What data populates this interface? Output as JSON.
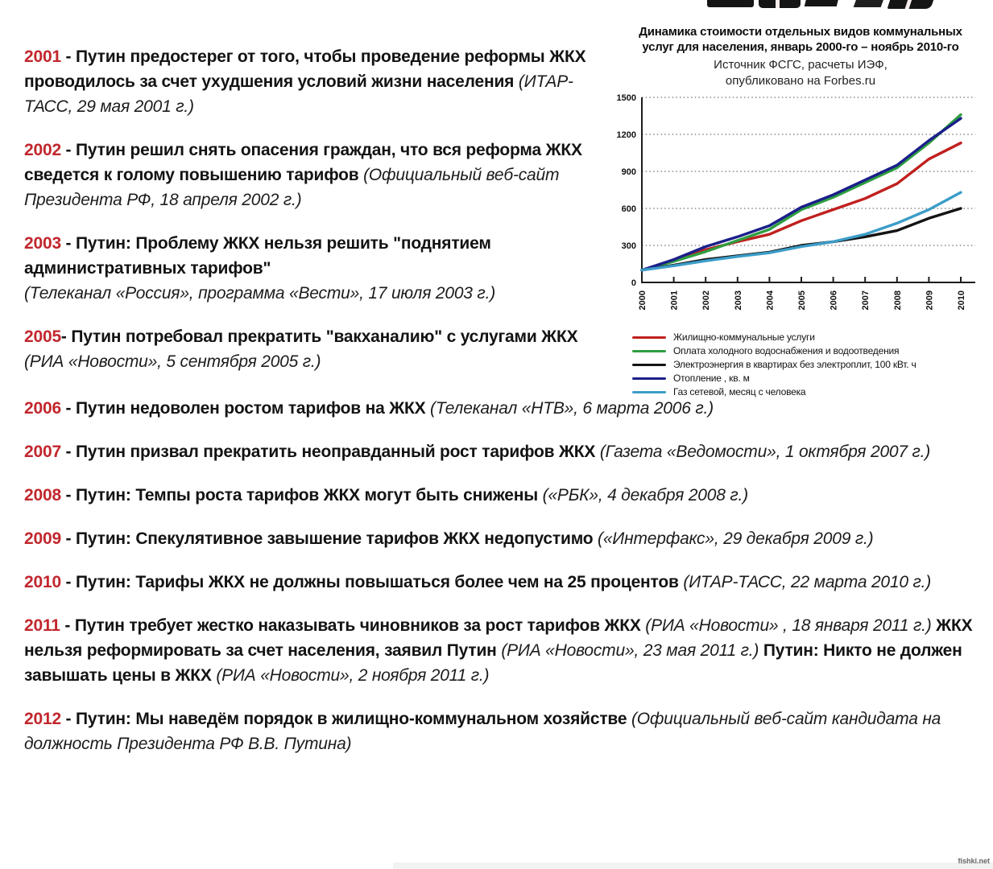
{
  "page": {
    "background": "#ffffff",
    "accent_red": "#c1272d"
  },
  "watermark": "fishki.net",
  "quotes": [
    {
      "year": "2001",
      "column": "left",
      "segments": [
        {
          "style": "year",
          "text": "2001"
        },
        {
          "style": "bold",
          "text": " - Путин предостерег от того, чтобы проведение реформы ЖКХ проводилось за счет ухудшения условий жизни населения "
        },
        {
          "style": "italic",
          "text": "(ИТАР-ТАСС, 29 мая 2001 г.)"
        }
      ]
    },
    {
      "year": "2002",
      "column": "left",
      "segments": [
        {
          "style": "year",
          "text": "2002"
        },
        {
          "style": "bold",
          "text": " - Путин решил снять опасения граждан, что вся реформа ЖКХ сведется к голому повышению тарифов "
        },
        {
          "style": "italic",
          "text": "(Официальный веб-сайт Президента РФ, 18 апреля 2002 г.)"
        }
      ]
    },
    {
      "year": "2003",
      "column": "left",
      "segments": [
        {
          "style": "year",
          "text": "2003"
        },
        {
          "style": "bold",
          "text": " - Путин: Проблему ЖКХ нельзя решить \"поднятием административных тарифов\""
        },
        {
          "style": "br"
        },
        {
          "style": "italic",
          "text": "(Телеканал «Россия», программа «Вести», 17 июля 2003 г.)"
        }
      ]
    },
    {
      "year": "2005",
      "column": "left",
      "segments": [
        {
          "style": "year",
          "text": "2005"
        },
        {
          "style": "bold",
          "text": "- Путин потребовал прекратить \"вакханалию\" с услугами ЖКХ "
        },
        {
          "style": "italic",
          "text": "(РИА «Новости», 5 сентября 2005 г.)"
        }
      ]
    },
    {
      "year": "2006",
      "column": "full",
      "segments": [
        {
          "style": "year",
          "text": "2006"
        },
        {
          "style": "bold",
          "text": " - Путин недоволен ростом тарифов на ЖКХ "
        },
        {
          "style": "italic",
          "text": "(Телеканал «НТВ», 6 марта 2006 г.)"
        }
      ]
    },
    {
      "year": "2007",
      "column": "full",
      "segments": [
        {
          "style": "year",
          "text": "2007"
        },
        {
          "style": "bold",
          "text": " - Путин призвал прекратить неоправданный рост тарифов ЖКХ "
        },
        {
          "style": "italic",
          "text": "(Газета «Ведомости», 1 октября 2007 г.)"
        }
      ]
    },
    {
      "year": "2008",
      "column": "full",
      "segments": [
        {
          "style": "year",
          "text": "2008"
        },
        {
          "style": "bold",
          "text": " - Путин: Темпы роста тарифов ЖКХ могут быть снижены "
        },
        {
          "style": "italic",
          "text": "(«РБК», 4 декабря 2008 г.)"
        }
      ]
    },
    {
      "year": "2009",
      "column": "full",
      "segments": [
        {
          "style": "year",
          "text": "2009"
        },
        {
          "style": "bold",
          "text": " - Путин: Спекулятивное завышение тарифов ЖКХ недопустимо "
        },
        {
          "style": "italic",
          "text": "(«Интерфакс»,  29 декабря 2009 г.)"
        }
      ]
    },
    {
      "year": "2010",
      "column": "full",
      "segments": [
        {
          "style": "year",
          "text": "2010"
        },
        {
          "style": "bold",
          "text": " - Путин: Тарифы ЖКХ не должны повышаться более чем на 25 процентов "
        },
        {
          "style": "italic",
          "text": "(ИТАР-ТАСС, 22 марта 2010 г.)"
        }
      ]
    },
    {
      "year": "2011",
      "column": "full",
      "segments": [
        {
          "style": "year",
          "text": "2011"
        },
        {
          "style": "bold",
          "text": " - Путин требует жестко наказывать чиновников за рост тарифов ЖКХ "
        },
        {
          "style": "italic",
          "text": "(РИА «Новости» , 18 января 2011 г.) "
        },
        {
          "style": "bold",
          "text": "ЖКХ нельзя реформировать за счет населения, заявил Путин "
        },
        {
          "style": "italic",
          "text": "(РИА «Новости», 23 мая 2011 г.) "
        },
        {
          "style": "bold",
          "text": "Путин: Никто не должен завышать цены в ЖКХ "
        },
        {
          "style": "italic",
          "text": "(РИА «Новости», 2 ноября 2011 г.)"
        }
      ]
    },
    {
      "year": "2012",
      "column": "full",
      "segments": [
        {
          "style": "year",
          "text": "2012"
        },
        {
          "style": "bold",
          "text": " - Путин: Мы наведём порядок в жилищно-коммунальном хозяйстве "
        },
        {
          "style": "italic",
          "text": "(Официальный веб-сайт кандидата на должность Президента РФ В.В. Путина)"
        }
      ]
    }
  ],
  "chart_data": {
    "type": "line",
    "title": "Динамика стоимости отдельных видов коммунальных услуг для населения, январь 2000-го – ноябрь 2010-го",
    "source_note": "Источник ФСГС, расчеты ИЭФ, опубликовано на Forbes.ru",
    "x": [
      2000,
      2001,
      2002,
      2003,
      2004,
      2005,
      2006,
      2007,
      2008,
      2009,
      2010
    ],
    "xlabel": "",
    "ylabel": "",
    "ylim": [
      0,
      1500
    ],
    "yticks": [
      0,
      300,
      600,
      900,
      1200,
      1500
    ],
    "grid": "dotted-horizontal",
    "legend_position": "bottom",
    "series": [
      {
        "name": "Жилищно-коммунальные услуги",
        "color": "#c0201e",
        "values": [
          100,
          180,
          265,
          330,
          390,
          500,
          590,
          680,
          800,
          1000,
          1130
        ]
      },
      {
        "name": "Оплата холодного водоснабжения и водоотведения",
        "color": "#2e9e40",
        "values": [
          100,
          170,
          250,
          340,
          430,
          590,
          690,
          810,
          930,
          1130,
          1360
        ]
      },
      {
        "name": "Электроэнергия в квартирах без электроплит, 100 кВт. ч",
        "color": "#141414",
        "values": [
          100,
          140,
          185,
          215,
          245,
          300,
          330,
          370,
          420,
          520,
          600
        ]
      },
      {
        "name": "Отопление , кв. м",
        "color": "#1b1f8a",
        "values": [
          100,
          185,
          290,
          370,
          460,
          610,
          710,
          830,
          950,
          1150,
          1330
        ]
      },
      {
        "name": "Газ сетевой, месяц с человека",
        "color": "#3c9dc8",
        "values": [
          100,
          135,
          175,
          210,
          240,
          290,
          330,
          390,
          480,
          590,
          730
        ]
      }
    ]
  }
}
